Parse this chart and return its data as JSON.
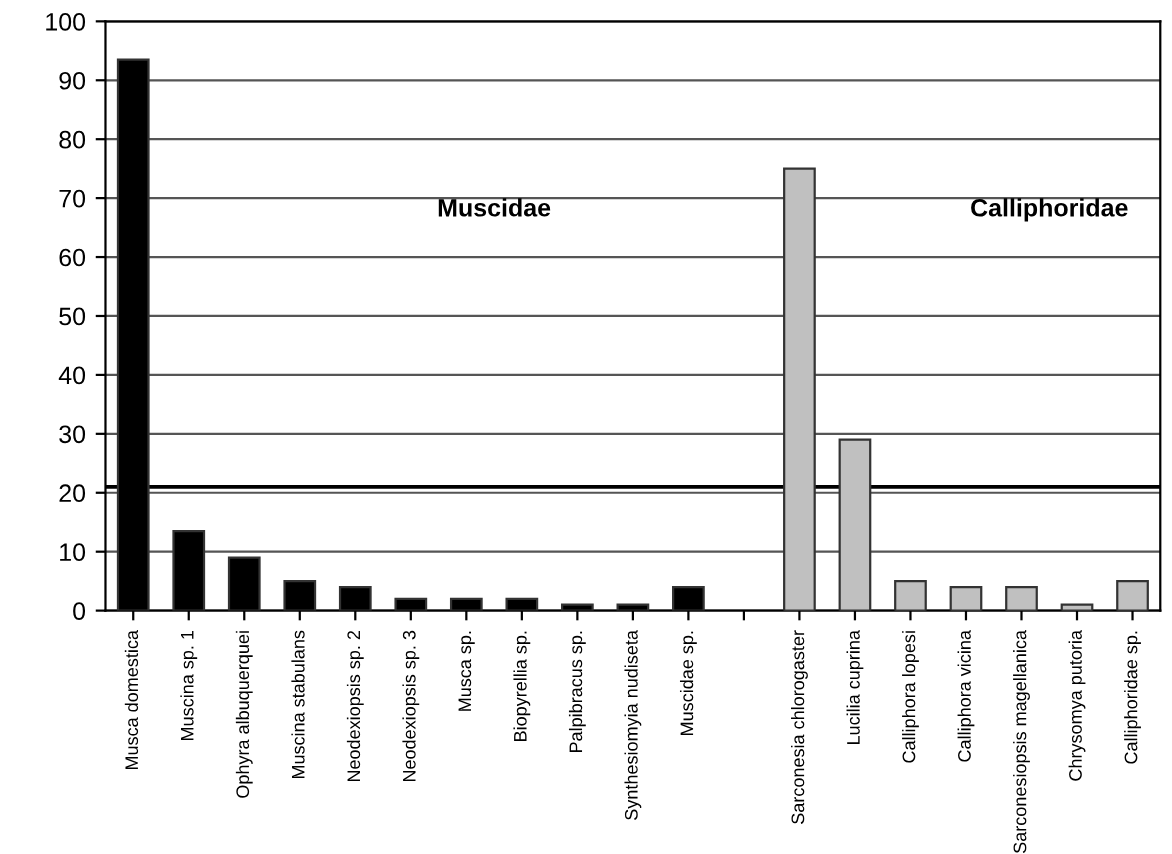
{
  "chart_data": {
    "type": "bar",
    "categories": [
      "Musca domestica",
      "Muscina sp. 1",
      "Ophyra albuquerquei",
      "Muscina stabulans",
      "Neodexiopsis sp. 2",
      "Neodexiopsis sp. 3",
      "Musca sp.",
      "Biopyrellia sp.",
      "Palpibracus sp.",
      "Synthesiomyia nudiseta",
      "Muscidae sp.",
      null,
      "Sarconesia chlorogaster",
      "Lucilia cuprina",
      "Calliphora lopesi",
      "Calliphora vicina",
      "Sarconesiopsis magellanica",
      "Chrysomya putoria",
      "Calliphoridae sp."
    ],
    "series": [
      {
        "color": "#000000",
        "values": [
          93.5,
          13.5,
          9,
          5,
          4,
          2,
          2,
          2,
          1,
          1,
          4,
          null,
          null,
          null,
          null,
          null,
          null,
          null,
          null
        ]
      },
      {
        "color": "#c0c0c0",
        "values": [
          null,
          null,
          null,
          null,
          null,
          null,
          null,
          null,
          null,
          null,
          null,
          null,
          75,
          29,
          5,
          4,
          4,
          1,
          5
        ]
      }
    ],
    "annotations": [
      "Muscidae",
      "Calliphoridae"
    ],
    "ylim": [
      0,
      100
    ],
    "yticks": [
      0,
      10,
      20,
      30,
      40,
      50,
      60,
      70,
      80,
      90,
      100
    ],
    "grid": "y",
    "legend": false,
    "ref_lines": [
      {
        "axis": "y",
        "value": 21,
        "color": "#000000"
      }
    ]
  }
}
